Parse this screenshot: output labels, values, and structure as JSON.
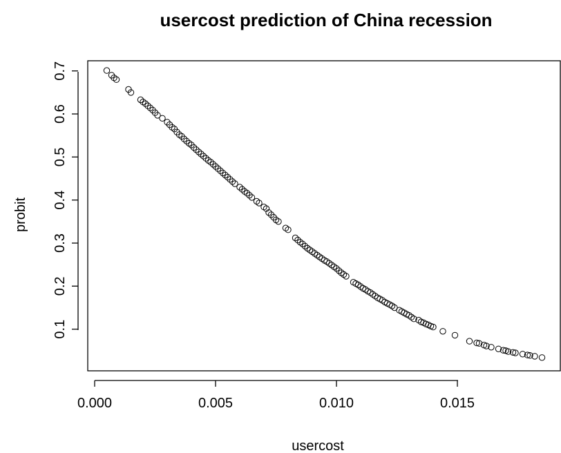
{
  "chart_data": {
    "type": "scatter",
    "title": "usercost prediction of China recession",
    "xlabel": "usercost",
    "ylabel": "probit",
    "xlim": [
      0.0,
      0.019
    ],
    "ylim": [
      0.0,
      0.72
    ],
    "x_ticks": [
      0.0,
      0.005,
      0.01,
      0.015
    ],
    "x_tick_labels": [
      "0.000",
      "0.005",
      "0.010",
      "0.015"
    ],
    "y_ticks": [
      0.1,
      0.2,
      0.3,
      0.4,
      0.5,
      0.6,
      0.7
    ],
    "y_tick_labels": [
      "0.1",
      "0.2",
      "0.3",
      "0.4",
      "0.5",
      "0.6",
      "0.7"
    ],
    "grid": false,
    "marker": "open-circle",
    "points": [
      [
        0.0005,
        0.701
      ],
      [
        0.0007,
        0.69
      ],
      [
        0.0008,
        0.684
      ],
      [
        0.0009,
        0.68
      ],
      [
        0.0014,
        0.657
      ],
      [
        0.0015,
        0.65
      ],
      [
        0.0019,
        0.633
      ],
      [
        0.002,
        0.628
      ],
      [
        0.0021,
        0.624
      ],
      [
        0.0022,
        0.619
      ],
      [
        0.0023,
        0.614
      ],
      [
        0.0024,
        0.609
      ],
      [
        0.0025,
        0.603
      ],
      [
        0.0026,
        0.597
      ],
      [
        0.0028,
        0.59
      ],
      [
        0.003,
        0.581
      ],
      [
        0.0031,
        0.575
      ],
      [
        0.0032,
        0.569
      ],
      [
        0.0033,
        0.565
      ],
      [
        0.0034,
        0.558
      ],
      [
        0.0035,
        0.552
      ],
      [
        0.0036,
        0.548
      ],
      [
        0.0037,
        0.542
      ],
      [
        0.0038,
        0.537
      ],
      [
        0.0039,
        0.532
      ],
      [
        0.004,
        0.528
      ],
      [
        0.0041,
        0.522
      ],
      [
        0.0042,
        0.517
      ],
      [
        0.0043,
        0.512
      ],
      [
        0.0044,
        0.507
      ],
      [
        0.0045,
        0.502
      ],
      [
        0.0046,
        0.497
      ],
      [
        0.0047,
        0.492
      ],
      [
        0.0048,
        0.488
      ],
      [
        0.0049,
        0.483
      ],
      [
        0.005,
        0.478
      ],
      [
        0.0051,
        0.473
      ],
      [
        0.0052,
        0.468
      ],
      [
        0.0053,
        0.463
      ],
      [
        0.0054,
        0.458
      ],
      [
        0.0055,
        0.453
      ],
      [
        0.0056,
        0.448
      ],
      [
        0.0057,
        0.443
      ],
      [
        0.0058,
        0.438
      ],
      [
        0.006,
        0.43
      ],
      [
        0.0061,
        0.425
      ],
      [
        0.0062,
        0.42
      ],
      [
        0.0063,
        0.416
      ],
      [
        0.0064,
        0.411
      ],
      [
        0.0065,
        0.406
      ],
      [
        0.0067,
        0.397
      ],
      [
        0.0068,
        0.393
      ],
      [
        0.007,
        0.384
      ],
      [
        0.0071,
        0.38
      ],
      [
        0.0072,
        0.371
      ],
      [
        0.0073,
        0.366
      ],
      [
        0.0074,
        0.36
      ],
      [
        0.0075,
        0.354
      ],
      [
        0.0076,
        0.35
      ],
      [
        0.0079,
        0.335
      ],
      [
        0.008,
        0.331
      ],
      [
        0.0083,
        0.312
      ],
      [
        0.0084,
        0.307
      ],
      [
        0.0085,
        0.302
      ],
      [
        0.0086,
        0.298
      ],
      [
        0.0087,
        0.293
      ],
      [
        0.0088,
        0.288
      ],
      [
        0.0089,
        0.284
      ],
      [
        0.009,
        0.28
      ],
      [
        0.0091,
        0.276
      ],
      [
        0.0092,
        0.272
      ],
      [
        0.0093,
        0.268
      ],
      [
        0.0094,
        0.264
      ],
      [
        0.0095,
        0.26
      ],
      [
        0.0096,
        0.257
      ],
      [
        0.0097,
        0.253
      ],
      [
        0.0098,
        0.249
      ],
      [
        0.0099,
        0.245
      ],
      [
        0.01,
        0.241
      ],
      [
        0.0101,
        0.236
      ],
      [
        0.0102,
        0.231
      ],
      [
        0.0103,
        0.227
      ],
      [
        0.0104,
        0.223
      ],
      [
        0.0107,
        0.209
      ],
      [
        0.0108,
        0.206
      ],
      [
        0.0109,
        0.203
      ],
      [
        0.011,
        0.199
      ],
      [
        0.0111,
        0.195
      ],
      [
        0.0112,
        0.192
      ],
      [
        0.0113,
        0.188
      ],
      [
        0.0114,
        0.185
      ],
      [
        0.0115,
        0.181
      ],
      [
        0.0116,
        0.177
      ],
      [
        0.0117,
        0.173
      ],
      [
        0.0118,
        0.17
      ],
      [
        0.0119,
        0.167
      ],
      [
        0.012,
        0.163
      ],
      [
        0.0121,
        0.16
      ],
      [
        0.0122,
        0.157
      ],
      [
        0.0123,
        0.154
      ],
      [
        0.0124,
        0.15
      ],
      [
        0.0126,
        0.144
      ],
      [
        0.0127,
        0.141
      ],
      [
        0.0128,
        0.138
      ],
      [
        0.0129,
        0.135
      ],
      [
        0.013,
        0.132
      ],
      [
        0.0131,
        0.128
      ],
      [
        0.0132,
        0.124
      ],
      [
        0.0134,
        0.121
      ],
      [
        0.0135,
        0.117
      ],
      [
        0.0136,
        0.115
      ],
      [
        0.0137,
        0.112
      ],
      [
        0.0138,
        0.11
      ],
      [
        0.0139,
        0.107
      ],
      [
        0.014,
        0.105
      ],
      [
        0.0144,
        0.095
      ],
      [
        0.0149,
        0.086
      ],
      [
        0.0155,
        0.072
      ],
      [
        0.0158,
        0.068
      ],
      [
        0.0159,
        0.067
      ],
      [
        0.0161,
        0.063
      ],
      [
        0.0162,
        0.061
      ],
      [
        0.0164,
        0.058
      ],
      [
        0.0167,
        0.054
      ],
      [
        0.0169,
        0.051
      ],
      [
        0.017,
        0.05
      ],
      [
        0.0171,
        0.048
      ],
      [
        0.0173,
        0.046
      ],
      [
        0.0174,
        0.045
      ],
      [
        0.0177,
        0.042
      ],
      [
        0.0179,
        0.04
      ],
      [
        0.018,
        0.039
      ],
      [
        0.0182,
        0.037
      ],
      [
        0.0185,
        0.034
      ]
    ]
  }
}
